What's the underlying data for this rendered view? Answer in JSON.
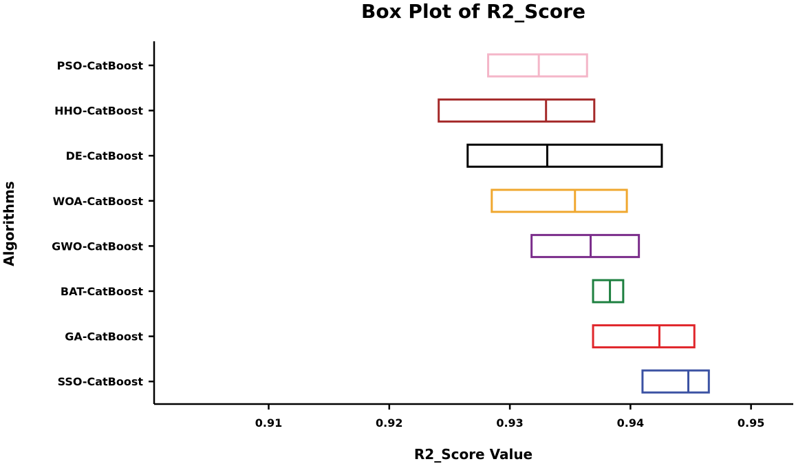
{
  "chart_data": {
    "type": "box",
    "orientation": "horizontal",
    "title": "Box Plot of R2_Score",
    "xlabel": "R2_Score Value",
    "ylabel": "Algorithms",
    "xlim": [
      0.9005,
      0.9535
    ],
    "xticks": [
      0.91,
      0.92,
      0.93,
      0.94,
      0.95
    ],
    "xtick_labels": [
      "0.91",
      "0.92",
      "0.93",
      "0.94",
      "0.95"
    ],
    "grid": false,
    "series": [
      {
        "label": "PSO-CatBoost",
        "q1": 0.9282,
        "median": 0.9324,
        "q3": 0.9364,
        "color": "#F4B6C8"
      },
      {
        "label": "HHO-CatBoost",
        "q1": 0.9241,
        "median": 0.933,
        "q3": 0.937,
        "color": "#A52A2A"
      },
      {
        "label": "DE-CatBoost",
        "q1": 0.9265,
        "median": 0.9331,
        "q3": 0.9426,
        "color": "#000000"
      },
      {
        "label": "WOA-CatBoost",
        "q1": 0.9285,
        "median": 0.9354,
        "q3": 0.9397,
        "color": "#F0A830"
      },
      {
        "label": "GWO-CatBoost",
        "q1": 0.9318,
        "median": 0.9367,
        "q3": 0.9407,
        "color": "#7B2D8B"
      },
      {
        "label": "BAT-CatBoost",
        "q1": 0.9369,
        "median": 0.9383,
        "q3": 0.9394,
        "color": "#1E8040"
      },
      {
        "label": "GA-CatBoost",
        "q1": 0.9369,
        "median": 0.9424,
        "q3": 0.9453,
        "color": "#E0262B"
      },
      {
        "label": "SSO-CatBoost",
        "q1": 0.941,
        "median": 0.9448,
        "q3": 0.9465,
        "color": "#3B52A3"
      }
    ]
  }
}
